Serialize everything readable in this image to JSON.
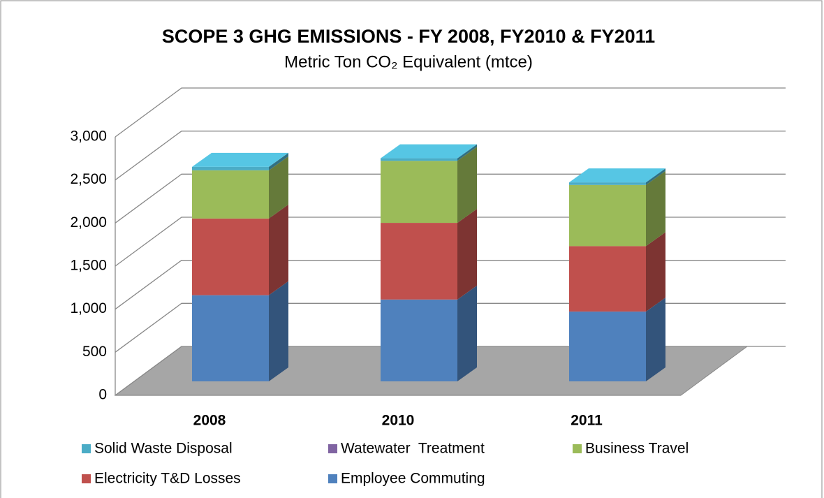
{
  "chart_data": {
    "type": "bar3d_stacked",
    "title": "SCOPE 3 GHG EMISSIONS - FY 2008, FY2010 & FY2011",
    "subtitle": "Metric Ton CO₂ Equivalent (mtce)",
    "categories": [
      "2008",
      "2010",
      "2011"
    ],
    "series": [
      {
        "name": "Solid Waste Disposal",
        "color": "#4bacc6",
        "values": [
          40,
          30,
          30
        ]
      },
      {
        "name": "Watewater  Treatment",
        "color": "#8064a2",
        "values": [
          0,
          0,
          0
        ]
      },
      {
        "name": "Business Travel",
        "color": "#9bbb59",
        "values": [
          560,
          720,
          710
        ]
      },
      {
        "name": "Electricity T&D Losses",
        "color": "#c0504d",
        "values": [
          890,
          890,
          760
        ]
      },
      {
        "name": "Employee Commuting",
        "color": "#4f81bd",
        "values": [
          1000,
          950,
          810
        ]
      }
    ],
    "ylim": [
      0,
      3000
    ],
    "yticks": [
      0,
      500,
      {
        "value": 1000,
        "label": "1,000"
      },
      {
        "value": 1500,
        "label": "1,500"
      },
      {
        "value": 2000,
        "label": "2,000"
      },
      {
        "value": 2500,
        "label": "2,500"
      },
      {
        "value": 3000,
        "label": "3,000"
      }
    ],
    "grid": true
  }
}
